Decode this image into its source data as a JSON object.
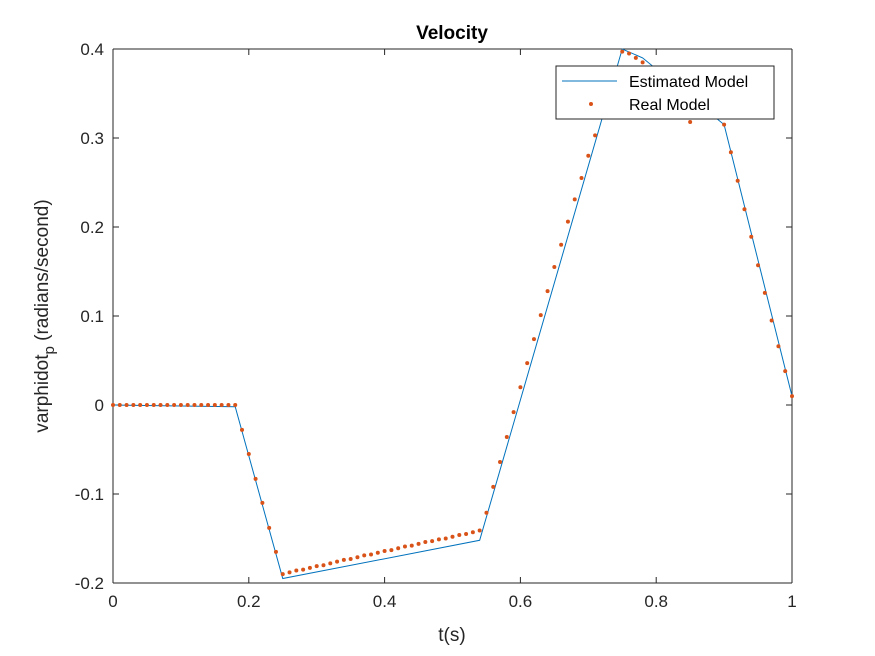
{
  "chart_data": {
    "type": "line",
    "title": "Velocity",
    "xlabel": "t(s)",
    "ylabel_main": "varphidot",
    "ylabel_sub": "p",
    "ylabel_rest": " (radians/second)",
    "xlim": [
      0,
      1
    ],
    "ylim": [
      -0.2,
      0.4
    ],
    "xticks": [
      0,
      0.2,
      0.4,
      0.6,
      0.8,
      1
    ],
    "xtick_labels": [
      "0",
      "0.2",
      "0.4",
      "0.6",
      "0.8",
      "1"
    ],
    "yticks": [
      -0.2,
      -0.1,
      0,
      0.1,
      0.2,
      0.3,
      0.4
    ],
    "ytick_labels": [
      "-0.2",
      "-0.1",
      "0",
      "0.1",
      "0.2",
      "0.3",
      "0.4"
    ],
    "grid": false,
    "legend_position": "top-right",
    "series": [
      {
        "name": "Estimated Model",
        "style": "line",
        "color": "#0072BD",
        "x": [
          0,
          0.18,
          0.25,
          0.54,
          0.75,
          0.78,
          0.9,
          1.0
        ],
        "y": [
          0,
          -0.002,
          -0.195,
          -0.152,
          0.4,
          0.39,
          0.315,
          0.01
        ]
      },
      {
        "name": "Real Model",
        "style": "markers",
        "color": "#D95319",
        "x": [
          0,
          0.01,
          0.02,
          0.03,
          0.04,
          0.05,
          0.06,
          0.07,
          0.08,
          0.09,
          0.1,
          0.11,
          0.12,
          0.13,
          0.14,
          0.15,
          0.16,
          0.17,
          0.18,
          0.19,
          0.2,
          0.21,
          0.22,
          0.23,
          0.24,
          0.25,
          0.26,
          0.27,
          0.28,
          0.29,
          0.3,
          0.31,
          0.32,
          0.33,
          0.34,
          0.35,
          0.36,
          0.37,
          0.38,
          0.39,
          0.4,
          0.41,
          0.42,
          0.43,
          0.44,
          0.45,
          0.46,
          0.47,
          0.48,
          0.49,
          0.5,
          0.51,
          0.52,
          0.53,
          0.54,
          0.55,
          0.56,
          0.57,
          0.58,
          0.59,
          0.6,
          0.61,
          0.62,
          0.63,
          0.64,
          0.65,
          0.66,
          0.67,
          0.68,
          0.69,
          0.7,
          0.71,
          0.72,
          0.73,
          0.74,
          0.75,
          0.76,
          0.77,
          0.78,
          0.79,
          0.8,
          0.81,
          0.82,
          0.83,
          0.84,
          0.85,
          0.86,
          0.87,
          0.88,
          0.89,
          0.9,
          0.91,
          0.92,
          0.93,
          0.94,
          0.95,
          0.96,
          0.97,
          0.98,
          0.99,
          1.0
        ],
        "y": [
          0,
          0,
          0,
          0,
          0,
          0,
          0,
          0,
          0,
          0,
          0,
          0,
          0,
          0,
          0,
          0,
          0,
          0,
          0,
          -0.028,
          -0.055,
          -0.083,
          -0.11,
          -0.138,
          -0.165,
          -0.19,
          -0.188,
          -0.186,
          -0.185,
          -0.183,
          -0.181,
          -0.18,
          -0.178,
          -0.176,
          -0.174,
          -0.173,
          -0.171,
          -0.169,
          -0.168,
          -0.166,
          -0.164,
          -0.163,
          -0.161,
          -0.159,
          -0.158,
          -0.156,
          -0.154,
          -0.153,
          -0.151,
          -0.15,
          -0.148,
          -0.146,
          -0.145,
          -0.143,
          -0.141,
          -0.121,
          -0.092,
          -0.064,
          -0.036,
          -0.008,
          0.02,
          0.047,
          0.074,
          0.101,
          0.128,
          0.155,
          0.18,
          0.206,
          0.231,
          0.255,
          0.28,
          0.303,
          0.327,
          0.35,
          0.373,
          0.397,
          0.395,
          0.39,
          0.385,
          0.375,
          0.365,
          0.355,
          0.345,
          0.336,
          0.327,
          0.318,
          0.34,
          0.345,
          0.335,
          0.325,
          0.315,
          0.284,
          0.252,
          0.22,
          0.189,
          0.157,
          0.126,
          0.095,
          0.066,
          0.038,
          0.01
        ]
      }
    ]
  }
}
